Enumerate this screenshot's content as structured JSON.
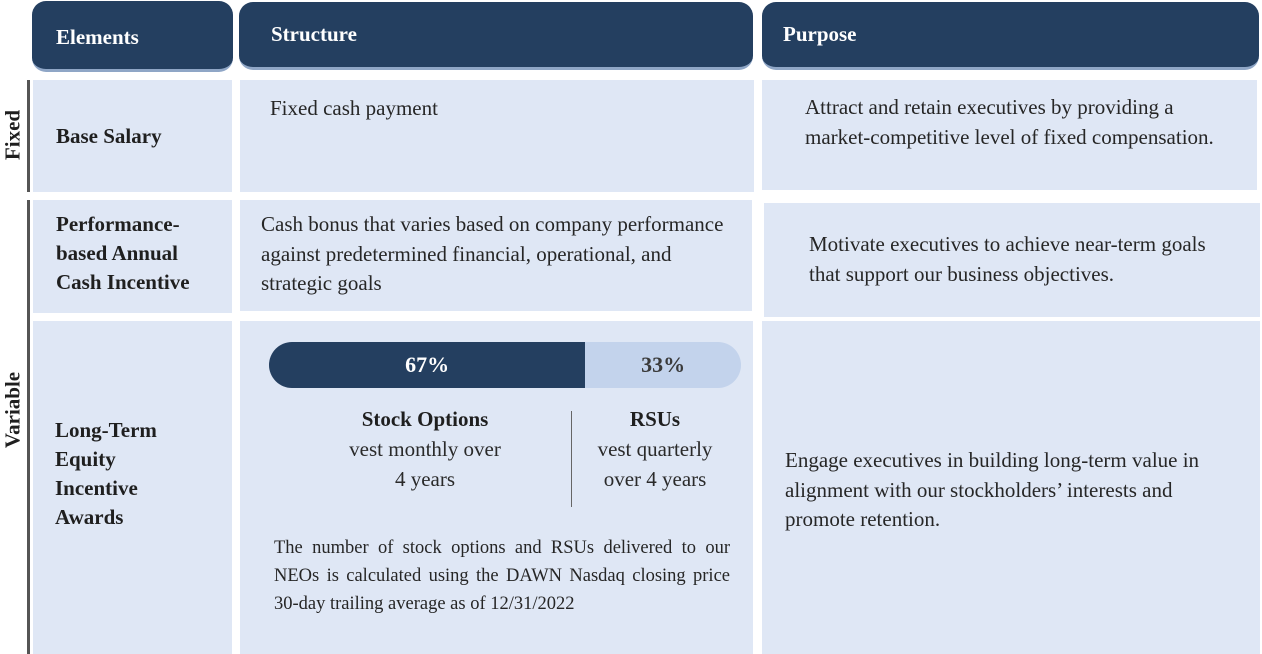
{
  "headers": {
    "elements": "Elements",
    "structure": "Structure",
    "purpose": "Purpose"
  },
  "groups": {
    "fixed": "Fixed",
    "variable": "Variable"
  },
  "rows": [
    {
      "element": "Base Salary",
      "structure": "Fixed cash payment",
      "purpose": "Attract and retain executives by providing a market-competitive level of fixed compensation."
    },
    {
      "element": "Performance-based Annual Cash Incentive",
      "structure": "Cash bonus that varies based on company performance against predetermined financial, operational, and strategic goals",
      "purpose": "Motivate executives to achieve near-term goals that support our business objectives."
    },
    {
      "element": "Long-Term Equity Incentive Awards",
      "purpose": "Engage executives in building long-term value in alignment with our stockholders’ interests and promote retention."
    }
  ],
  "equity_split": {
    "stock_options": {
      "percent_label": "67%",
      "share": 0.67,
      "title": "Stock Options",
      "vesting_line1": "vest monthly over",
      "vesting_line2": "4 years"
    },
    "rsus": {
      "percent_label": "33%",
      "share": 0.33,
      "title": "RSUs",
      "vesting_line1": "vest quarterly",
      "vesting_line2": "over 4 years"
    },
    "note": "The number of stock options and RSUs delivered to our NEOs is calculated using the DAWN Nasdaq closing price 30-day trailing average as of 12/31/2022"
  },
  "colors": {
    "header_navy": "#243f60",
    "cell_fill": "#dfe7f5",
    "bar_light": "#c3d3ec"
  }
}
